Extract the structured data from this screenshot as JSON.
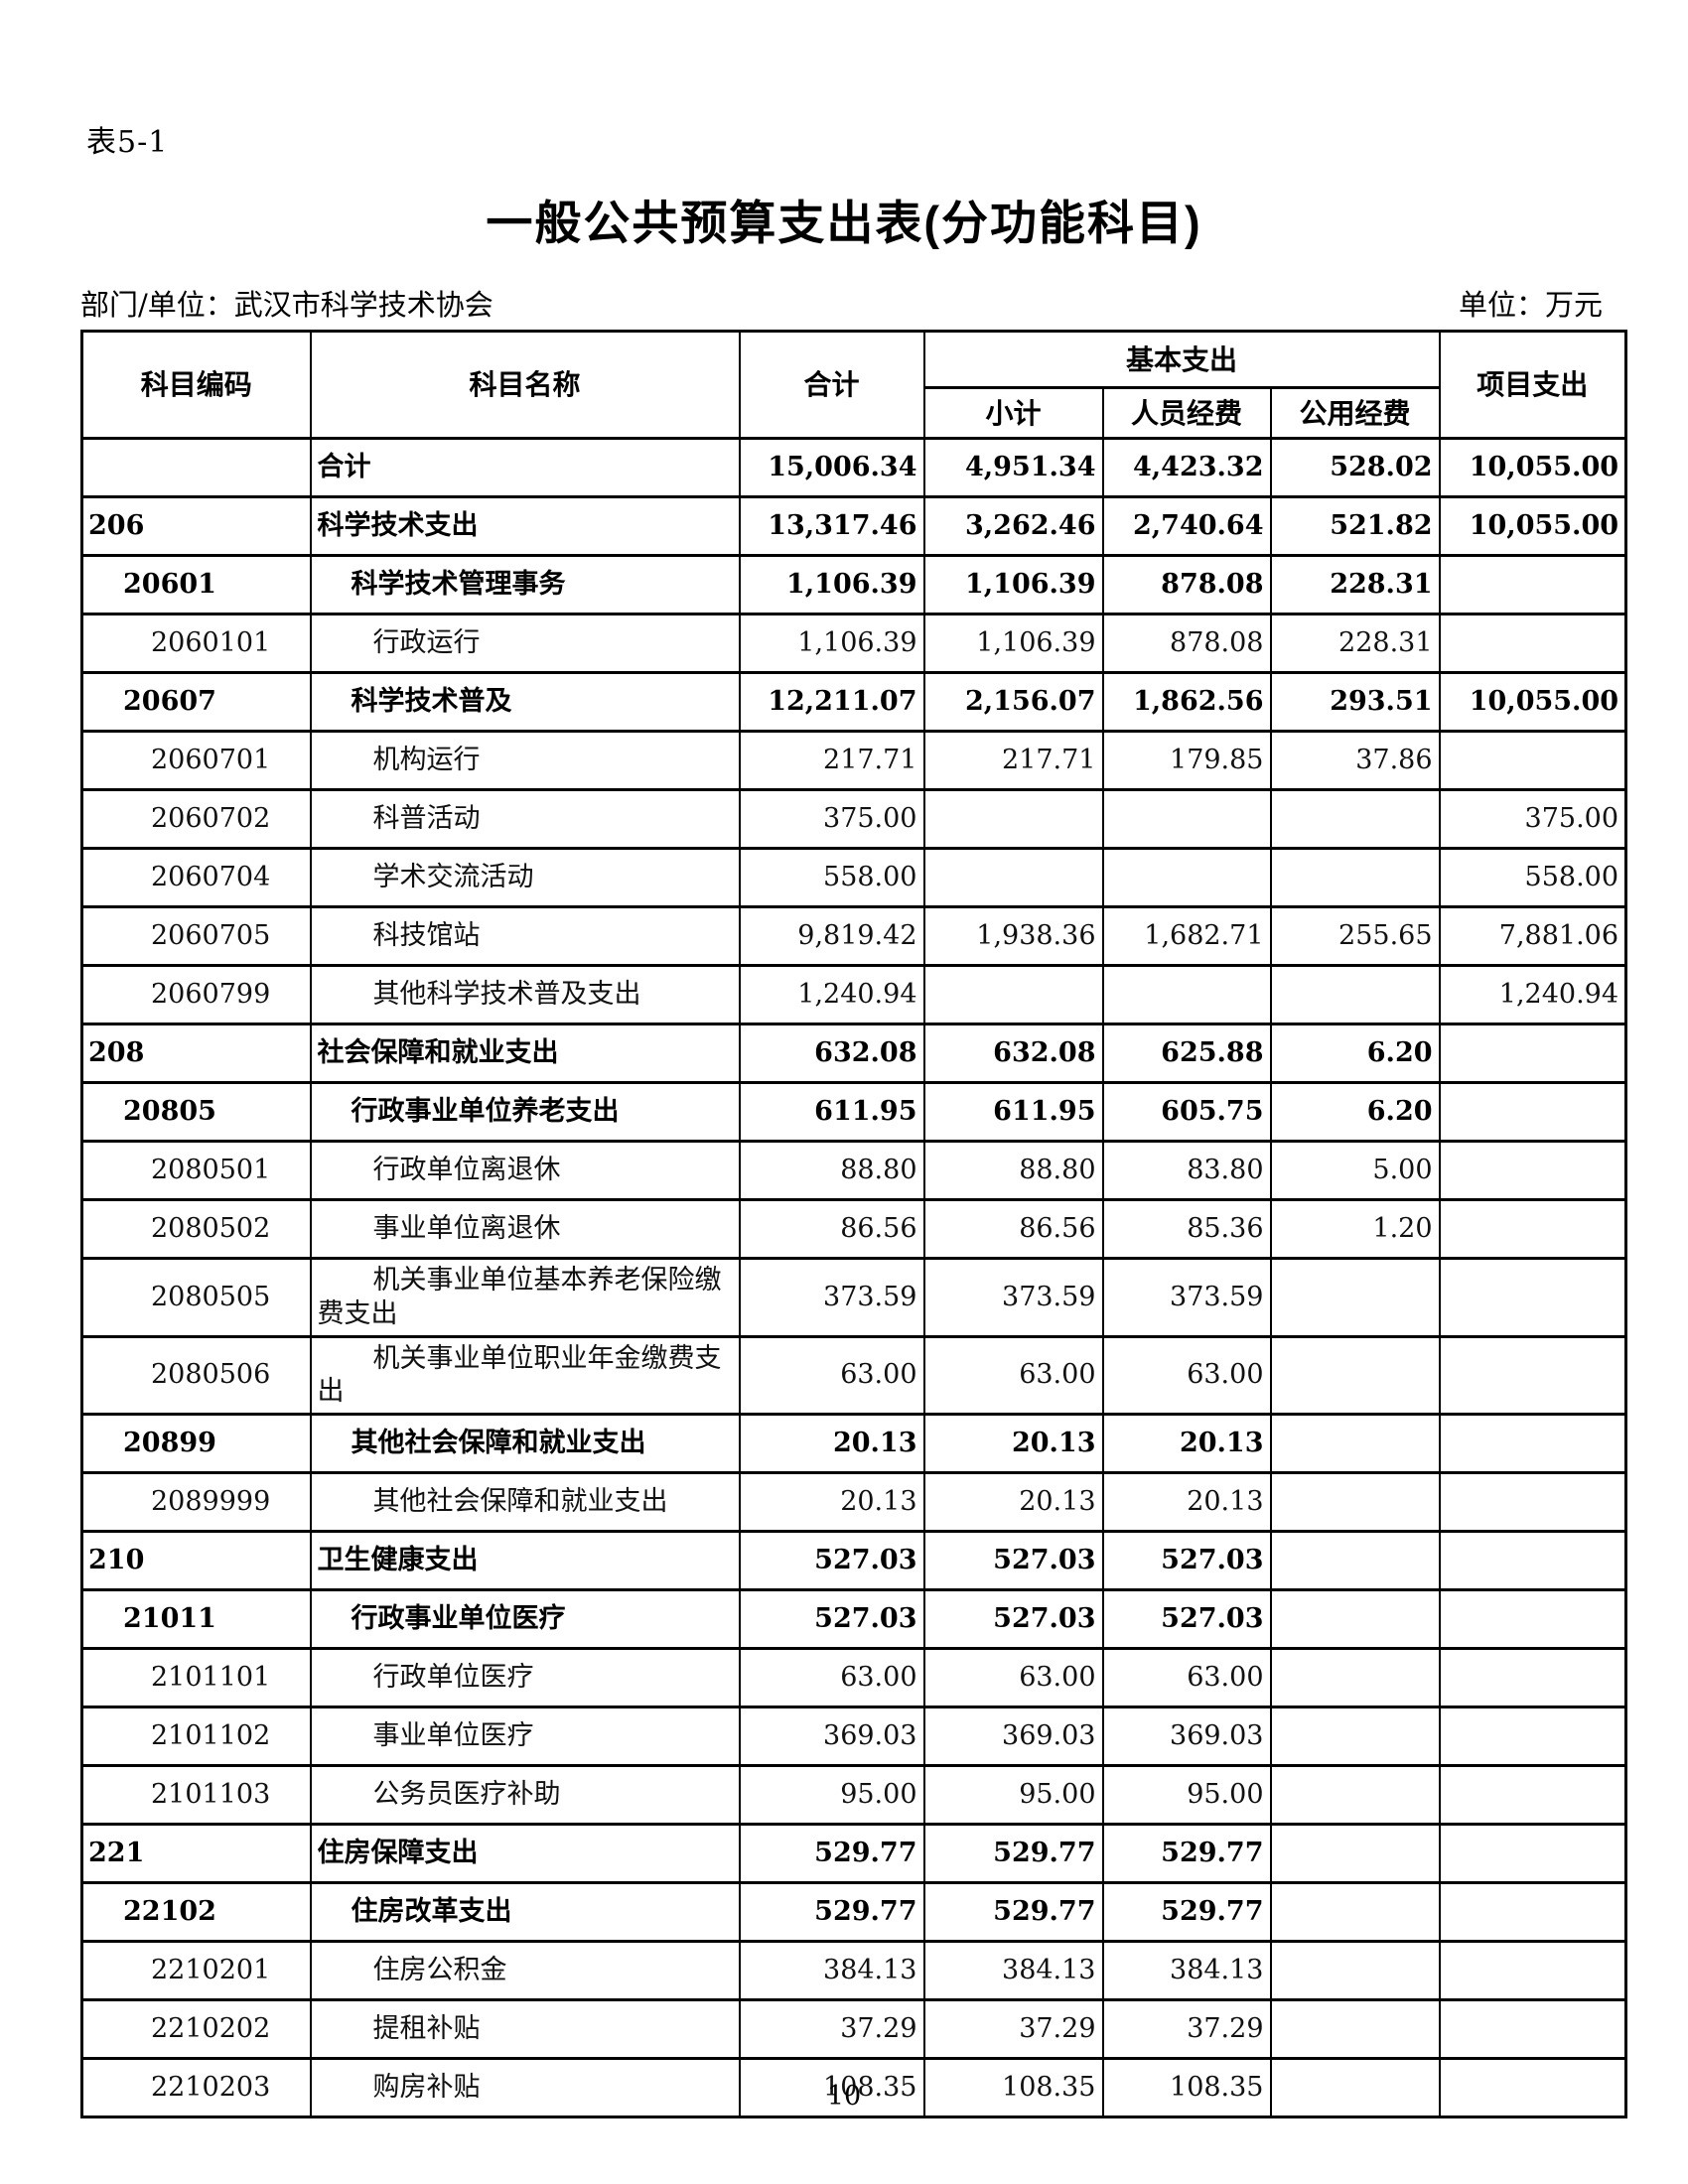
{
  "page": {
    "table_label": "表5-1",
    "title": "一般公共预算支出表(分功能科目)",
    "department_label": "部门/单位：武汉市科学技术协会",
    "unit_label": "单位：万元",
    "page_number": "10"
  },
  "table": {
    "headers": {
      "code": "科目编码",
      "name": "科目名称",
      "total": "合计",
      "basic_group": "基本支出",
      "basic_subtotal": "小计",
      "personnel": "人员经费",
      "public": "公用经费",
      "project": "项目支出"
    },
    "rows": [
      {
        "code": "",
        "name": "合计",
        "total": "15,006.34",
        "basic_subtotal": "4,951.34",
        "personnel": "4,423.32",
        "public": "528.02",
        "project": "10,055.00",
        "level": 0,
        "bold": true
      },
      {
        "code": "206",
        "name": "科学技术支出",
        "total": "13,317.46",
        "basic_subtotal": "3,262.46",
        "personnel": "2,740.64",
        "public": "521.82",
        "project": "10,055.00",
        "level": 1,
        "bold": true
      },
      {
        "code": "20601",
        "name": "科学技术管理事务",
        "total": "1,106.39",
        "basic_subtotal": "1,106.39",
        "personnel": "878.08",
        "public": "228.31",
        "project": "",
        "level": 2,
        "bold": true
      },
      {
        "code": "2060101",
        "name": "行政运行",
        "total": "1,106.39",
        "basic_subtotal": "1,106.39",
        "personnel": "878.08",
        "public": "228.31",
        "project": "",
        "level": 3,
        "bold": false
      },
      {
        "code": "20607",
        "name": "科学技术普及",
        "total": "12,211.07",
        "basic_subtotal": "2,156.07",
        "personnel": "1,862.56",
        "public": "293.51",
        "project": "10,055.00",
        "level": 2,
        "bold": true
      },
      {
        "code": "2060701",
        "name": "机构运行",
        "total": "217.71",
        "basic_subtotal": "217.71",
        "personnel": "179.85",
        "public": "37.86",
        "project": "",
        "level": 3,
        "bold": false
      },
      {
        "code": "2060702",
        "name": "科普活动",
        "total": "375.00",
        "basic_subtotal": "",
        "personnel": "",
        "public": "",
        "project": "375.00",
        "level": 3,
        "bold": false
      },
      {
        "code": "2060704",
        "name": "学术交流活动",
        "total": "558.00",
        "basic_subtotal": "",
        "personnel": "",
        "public": "",
        "project": "558.00",
        "level": 3,
        "bold": false
      },
      {
        "code": "2060705",
        "name": "科技馆站",
        "total": "9,819.42",
        "basic_subtotal": "1,938.36",
        "personnel": "1,682.71",
        "public": "255.65",
        "project": "7,881.06",
        "level": 3,
        "bold": false
      },
      {
        "code": "2060799",
        "name": "其他科学技术普及支出",
        "total": "1,240.94",
        "basic_subtotal": "",
        "personnel": "",
        "public": "",
        "project": "1,240.94",
        "level": 3,
        "bold": false
      },
      {
        "code": "208",
        "name": "社会保障和就业支出",
        "total": "632.08",
        "basic_subtotal": "632.08",
        "personnel": "625.88",
        "public": "6.20",
        "project": "",
        "level": 1,
        "bold": true
      },
      {
        "code": "20805",
        "name": "行政事业单位养老支出",
        "total": "611.95",
        "basic_subtotal": "611.95",
        "personnel": "605.75",
        "public": "6.20",
        "project": "",
        "level": 2,
        "bold": true
      },
      {
        "code": "2080501",
        "name": "行政单位离退休",
        "total": "88.80",
        "basic_subtotal": "88.80",
        "personnel": "83.80",
        "public": "5.00",
        "project": "",
        "level": 3,
        "bold": false
      },
      {
        "code": "2080502",
        "name": "事业单位离退休",
        "total": "86.56",
        "basic_subtotal": "86.56",
        "personnel": "85.36",
        "public": "1.20",
        "project": "",
        "level": 3,
        "bold": false
      },
      {
        "code": "2080505",
        "name": "机关事业单位基本养老保险缴费支出",
        "total": "373.59",
        "basic_subtotal": "373.59",
        "personnel": "373.59",
        "public": "",
        "project": "",
        "level": 3,
        "bold": false
      },
      {
        "code": "2080506",
        "name": "机关事业单位职业年金缴费支出",
        "total": "63.00",
        "basic_subtotal": "63.00",
        "personnel": "63.00",
        "public": "",
        "project": "",
        "level": 3,
        "bold": false
      },
      {
        "code": "20899",
        "name": "其他社会保障和就业支出",
        "total": "20.13",
        "basic_subtotal": "20.13",
        "personnel": "20.13",
        "public": "",
        "project": "",
        "level": 2,
        "bold": true
      },
      {
        "code": "2089999",
        "name": "其他社会保障和就业支出",
        "total": "20.13",
        "basic_subtotal": "20.13",
        "personnel": "20.13",
        "public": "",
        "project": "",
        "level": 3,
        "bold": false
      },
      {
        "code": "210",
        "name": "卫生健康支出",
        "total": "527.03",
        "basic_subtotal": "527.03",
        "personnel": "527.03",
        "public": "",
        "project": "",
        "level": 1,
        "bold": true
      },
      {
        "code": "21011",
        "name": "行政事业单位医疗",
        "total": "527.03",
        "basic_subtotal": "527.03",
        "personnel": "527.03",
        "public": "",
        "project": "",
        "level": 2,
        "bold": true
      },
      {
        "code": "2101101",
        "name": "行政单位医疗",
        "total": "63.00",
        "basic_subtotal": "63.00",
        "personnel": "63.00",
        "public": "",
        "project": "",
        "level": 3,
        "bold": false
      },
      {
        "code": "2101102",
        "name": "事业单位医疗",
        "total": "369.03",
        "basic_subtotal": "369.03",
        "personnel": "369.03",
        "public": "",
        "project": "",
        "level": 3,
        "bold": false
      },
      {
        "code": "2101103",
        "name": "公务员医疗补助",
        "total": "95.00",
        "basic_subtotal": "95.00",
        "personnel": "95.00",
        "public": "",
        "project": "",
        "level": 3,
        "bold": false
      },
      {
        "code": "221",
        "name": "住房保障支出",
        "total": "529.77",
        "basic_subtotal": "529.77",
        "personnel": "529.77",
        "public": "",
        "project": "",
        "level": 1,
        "bold": true
      },
      {
        "code": "22102",
        "name": "住房改革支出",
        "total": "529.77",
        "basic_subtotal": "529.77",
        "personnel": "529.77",
        "public": "",
        "project": "",
        "level": 2,
        "bold": true
      },
      {
        "code": "2210201",
        "name": "住房公积金",
        "total": "384.13",
        "basic_subtotal": "384.13",
        "personnel": "384.13",
        "public": "",
        "project": "",
        "level": 3,
        "bold": false
      },
      {
        "code": "2210202",
        "name": "提租补贴",
        "total": "37.29",
        "basic_subtotal": "37.29",
        "personnel": "37.29",
        "public": "",
        "project": "",
        "level": 3,
        "bold": false
      },
      {
        "code": "2210203",
        "name": "购房补贴",
        "total": "108.35",
        "basic_subtotal": "108.35",
        "personnel": "108.35",
        "public": "",
        "project": "",
        "level": 3,
        "bold": false
      }
    ]
  }
}
